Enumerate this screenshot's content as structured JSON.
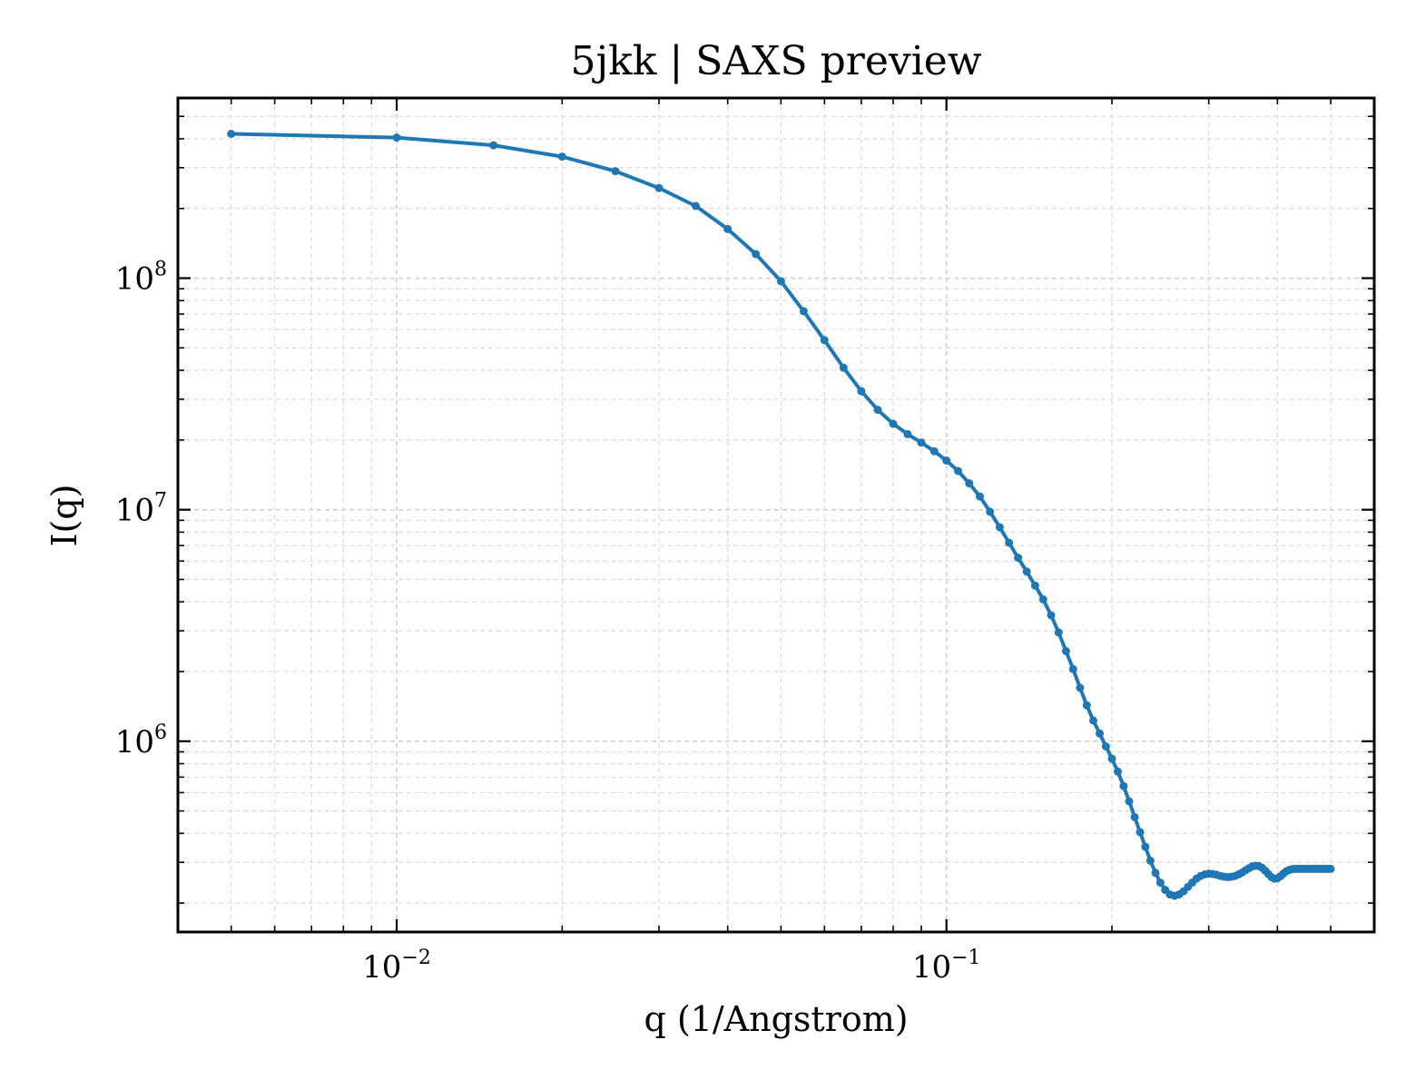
{
  "chart_data": {
    "type": "line",
    "title": "5jkk | SAXS preview",
    "xlabel": "q (1/Angstrom)",
    "ylabel": "I(q)",
    "xscale": "log",
    "yscale": "log",
    "xlim": [
      0.004,
      0.6
    ],
    "ylim": [
      150000,
      600000000
    ],
    "grid": true,
    "legend": false,
    "color": "#1f77b4",
    "x_ticks": [
      {
        "value": 0.01,
        "base": "10",
        "exp": "−2"
      },
      {
        "value": 0.1,
        "base": "10",
        "exp": "−1"
      }
    ],
    "y_ticks": [
      {
        "value": 1000000,
        "base": "10",
        "exp": "6"
      },
      {
        "value": 10000000,
        "base": "10",
        "exp": "7"
      },
      {
        "value": 100000000,
        "base": "10",
        "exp": "8"
      }
    ],
    "series": [
      {
        "x": [
          0.005,
          0.01,
          0.015,
          0.02,
          0.025,
          0.03,
          0.035,
          0.04,
          0.045,
          0.05,
          0.055,
          0.06,
          0.065,
          0.07,
          0.075,
          0.08,
          0.085,
          0.09,
          0.095,
          0.1,
          0.105,
          0.11,
          0.115,
          0.12,
          0.125,
          0.13,
          0.135,
          0.14,
          0.145,
          0.15,
          0.155,
          0.16,
          0.165,
          0.17,
          0.175,
          0.18,
          0.185,
          0.19,
          0.195,
          0.2,
          0.205,
          0.21,
          0.215,
          0.22,
          0.225,
          0.23,
          0.235,
          0.24,
          0.245,
          0.25,
          0.255,
          0.26,
          0.265,
          0.27,
          0.275,
          0.28,
          0.285,
          0.29,
          0.295,
          0.3,
          0.305,
          0.31,
          0.315,
          0.32,
          0.325,
          0.33,
          0.335,
          0.34,
          0.345,
          0.35,
          0.355,
          0.36,
          0.365,
          0.37,
          0.375,
          0.38,
          0.385,
          0.39,
          0.395,
          0.4,
          0.405,
          0.41,
          0.415,
          0.42,
          0.425,
          0.43,
          0.435,
          0.44,
          0.445,
          0.45,
          0.455,
          0.46,
          0.465,
          0.47,
          0.475,
          0.48,
          0.485,
          0.49,
          0.495,
          0.5
        ],
        "y": [
          420000000,
          405000000,
          375000000,
          335000000,
          290000000,
          245000000,
          205000000,
          163000000,
          127000000,
          97000000,
          72000000,
          54000000,
          41000000,
          32500000,
          27000000,
          23500000,
          21200000,
          19500000,
          17900000,
          16300000,
          14700000,
          13000000,
          11400000,
          9800000,
          8400000,
          7200000,
          6200000,
          5400000,
          4700000,
          4100000,
          3500000,
          2950000,
          2450000,
          2050000,
          1700000,
          1430000,
          1230000,
          1080000,
          950000,
          840000,
          740000,
          640000,
          550000,
          470000,
          405000,
          350000,
          305000,
          270000,
          245000,
          228000,
          218000,
          215000,
          218000,
          225000,
          235000,
          245000,
          255000,
          262000,
          266000,
          268000,
          267000,
          265000,
          262000,
          260000,
          259000,
          260000,
          262000,
          266000,
          271000,
          277000,
          283000,
          288000,
          290000,
          289000,
          284000,
          276000,
          267000,
          259000,
          255000,
          256000,
          261000,
          268000,
          274000,
          278000,
          280000,
          281000,
          281000,
          281000,
          281000,
          281000,
          281000,
          281000,
          281000,
          281000,
          281000,
          281000,
          281000,
          281000,
          281000,
          281000
        ]
      }
    ]
  }
}
